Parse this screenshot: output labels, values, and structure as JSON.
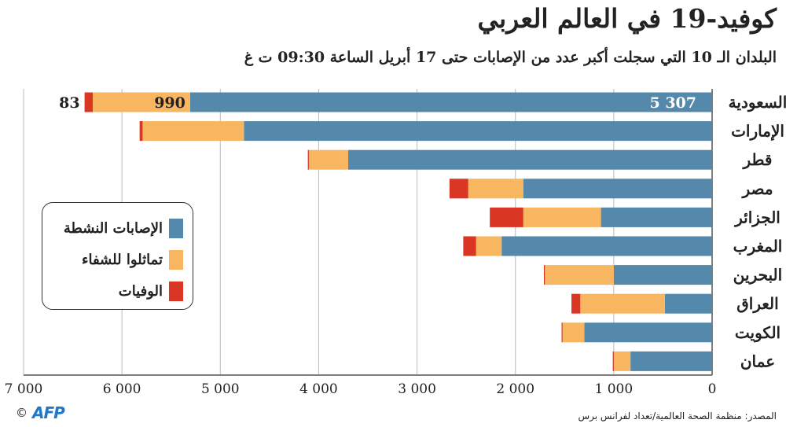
{
  "title": "كوفيد-19 في العالم العربي",
  "subtitle": "البلدان الـ 10 التي سجلت أكبر عدد من الإصابات حتى 17 أبريل الساعة 09:30 ت غ",
  "colors": {
    "active": "#5589ac",
    "recovered": "#f9b661",
    "deaths": "#d93624",
    "grid": "#bbbbbb"
  },
  "legend": {
    "active": "الإصابات النشطة",
    "recovered": "تماثلوا للشفاء",
    "deaths": "الوفيات"
  },
  "footer": {
    "source": "المصدر: منظمة الصحة العالمية/تعداد لفرانس برس",
    "copyright": "©",
    "logo": "AFP"
  },
  "chart_data": {
    "type": "bar",
    "orientation": "horizontal-stacked",
    "xlim": [
      0,
      7000
    ],
    "x_ticks": [
      "0",
      "1 000",
      "2 000",
      "3 000",
      "4 000",
      "5 000",
      "6 000",
      "7 000"
    ],
    "grid": true,
    "categories": [
      "السعودية",
      "الإمارات",
      "قطر",
      "مصر",
      "الجزائر",
      "المغرب",
      "البحرين",
      "العراق",
      "الكويت",
      "عمان"
    ],
    "series": [
      {
        "name": "الإصابات النشطة",
        "values": [
          5307,
          4760,
          3700,
          1920,
          1130,
          2140,
          1000,
          480,
          1300,
          830
        ]
      },
      {
        "name": "تماثلوا للشفاء",
        "values": [
          990,
          1030,
          400,
          560,
          790,
          260,
          700,
          860,
          220,
          170
        ]
      },
      {
        "name": "الوفيات",
        "values": [
          83,
          30,
          10,
          190,
          340,
          130,
          10,
          90,
          10,
          10
        ]
      }
    ],
    "data_labels": {
      "active": "5 307",
      "recovered": "990",
      "deaths": "83"
    }
  }
}
